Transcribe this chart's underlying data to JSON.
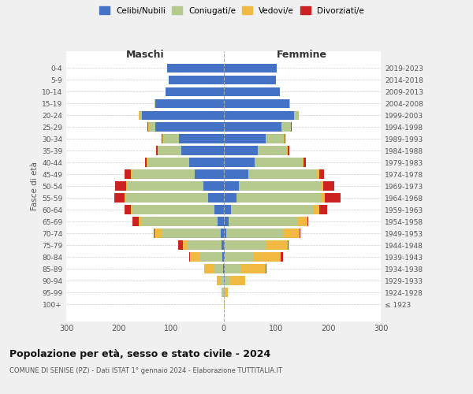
{
  "age_groups": [
    "100+",
    "95-99",
    "90-94",
    "85-89",
    "80-84",
    "75-79",
    "70-74",
    "65-69",
    "60-64",
    "55-59",
    "50-54",
    "45-49",
    "40-44",
    "35-39",
    "30-34",
    "25-29",
    "20-24",
    "15-19",
    "10-14",
    "5-9",
    "0-4"
  ],
  "birth_years": [
    "≤ 1923",
    "1924-1928",
    "1929-1933",
    "1934-1938",
    "1939-1943",
    "1944-1948",
    "1949-1953",
    "1954-1958",
    "1959-1963",
    "1964-1968",
    "1969-1973",
    "1974-1978",
    "1979-1983",
    "1984-1988",
    "1989-1993",
    "1994-1998",
    "1999-2003",
    "2004-2008",
    "2009-2013",
    "2014-2018",
    "2019-2023"
  ],
  "maschi_celibi": [
    0,
    0,
    0,
    1,
    2,
    4,
    6,
    12,
    18,
    30,
    38,
    55,
    65,
    80,
    85,
    130,
    155,
    130,
    110,
    105,
    108
  ],
  "maschi_coniugati": [
    0,
    2,
    5,
    18,
    42,
    65,
    110,
    145,
    155,
    155,
    145,
    120,
    80,
    45,
    30,
    12,
    5,
    2,
    0,
    0,
    0
  ],
  "maschi_vedovi": [
    0,
    2,
    8,
    18,
    20,
    8,
    15,
    5,
    4,
    3,
    2,
    2,
    1,
    1,
    1,
    2,
    1,
    0,
    0,
    0,
    0
  ],
  "maschi_divorziati": [
    0,
    0,
    0,
    0,
    2,
    10,
    2,
    12,
    12,
    20,
    22,
    12,
    4,
    2,
    2,
    1,
    0,
    0,
    0,
    0,
    0
  ],
  "femmine_celibi": [
    0,
    0,
    2,
    2,
    2,
    2,
    5,
    10,
    15,
    25,
    30,
    48,
    60,
    65,
    80,
    110,
    135,
    125,
    108,
    100,
    102
  ],
  "femmine_coniugati": [
    1,
    4,
    10,
    30,
    55,
    80,
    110,
    130,
    155,
    160,
    155,
    130,
    90,
    55,
    35,
    18,
    8,
    2,
    0,
    0,
    0
  ],
  "femmine_vedovi": [
    1,
    5,
    30,
    48,
    52,
    40,
    30,
    20,
    12,
    8,
    5,
    4,
    2,
    2,
    1,
    1,
    0,
    0,
    0,
    0,
    0
  ],
  "femmine_divorziati": [
    0,
    0,
    0,
    2,
    4,
    2,
    2,
    2,
    15,
    30,
    22,
    10,
    5,
    3,
    2,
    1,
    0,
    0,
    0,
    0,
    0
  ],
  "colors": {
    "celibi": "#4472c4",
    "coniugati": "#b5c98e",
    "vedovi": "#f0b942",
    "divorziati": "#cc2222"
  },
  "legend_labels": [
    "Celibi/Nubili",
    "Coniugati/e",
    "Vedovi/e",
    "Divorziati/e"
  ],
  "xlabel_left": "Maschi",
  "xlabel_right": "Femmine",
  "ylabel": "Fasce di età",
  "title": "Popolazione per età, sesso e stato civile - 2024",
  "subtitle": "COMUNE DI SENISE (PZ) - Dati ISTAT 1° gennaio 2024 - Elaborazione TUTTITALIA.IT",
  "xlim": 300,
  "bg_color": "#f0f0f0",
  "plot_bg": "#ffffff",
  "grid_color": "#cccccc"
}
